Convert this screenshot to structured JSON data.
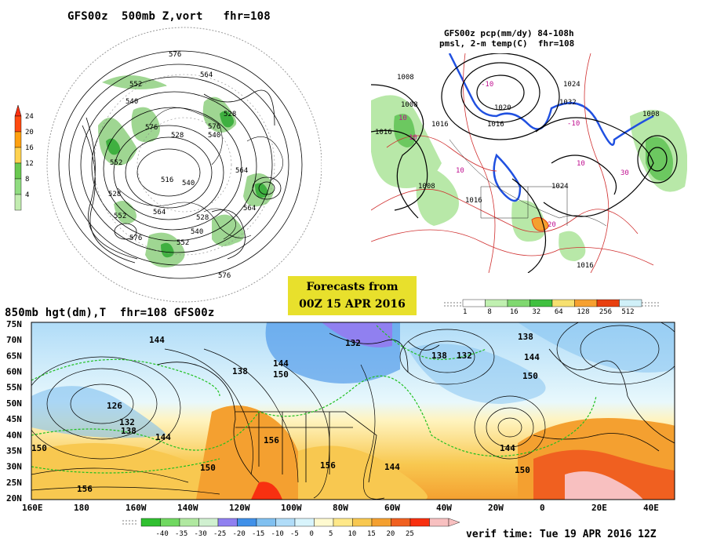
{
  "panel_500mb": {
    "title": "GFS00z  500mb Z,vort   fhr=108",
    "contour_labels": [
      "576",
      "564",
      "552",
      "540",
      "528",
      "576",
      "540",
      "552",
      "564",
      "528",
      "516",
      "552",
      "540",
      "576",
      "528",
      "564",
      "576",
      "552",
      "540",
      "564",
      "528",
      "576"
    ],
    "legend": {
      "ticks": [
        "24",
        "20",
        "16",
        "12",
        "8",
        "4"
      ],
      "colors": [
        "#ff4a10",
        "#ffa010",
        "#ffd250",
        "#6ac850",
        "#90dc80",
        "#c2ecb0"
      ]
    }
  },
  "panel_precip": {
    "title_line1": "GFS00z pcp(mm/dy) 84-108h",
    "title_line2": "pmsl, 2-m temp(C)  fhr=108",
    "pressure_labels": [
      "1008",
      "1008",
      "1016",
      "1016",
      "1016",
      "1032",
      "1024",
      "1024",
      "1020",
      "1016",
      "1008",
      "1008",
      "1016"
    ],
    "temp_labels": [
      "-10",
      "10",
      "10",
      "10",
      "20",
      "10",
      "-10",
      "30"
    ],
    "legend": {
      "ticks": [
        "1",
        "8",
        "16",
        "32",
        "64",
        "128",
        "256",
        "512"
      ],
      "colors": [
        "#ffffff",
        "#c0f0b0",
        "#80d870",
        "#40c040",
        "#f6e070",
        "#f6a030",
        "#e84010",
        "#d0f0f8"
      ]
    }
  },
  "banner": {
    "line1": "Forecasts from",
    "line2": "00Z 15 APR 2016"
  },
  "panel_850mb": {
    "title": "850mb hgt(dm),T  fhr=108 GFS00z",
    "lat_labels": [
      "75N",
      "70N",
      "65N",
      "60N",
      "55N",
      "50N",
      "45N",
      "40N",
      "35N",
      "30N",
      "25N",
      "20N"
    ],
    "lon_labels": [
      "160E",
      "180",
      "160W",
      "140W",
      "120W",
      "100W",
      "80W",
      "60W",
      "40W",
      "20W",
      "0",
      "20E",
      "40E"
    ],
    "height_labels": [
      "144",
      "132",
      "138",
      "138",
      "144",
      "150",
      "138",
      "132",
      "144",
      "150",
      "126",
      "132",
      "138",
      "144",
      "150",
      "156",
      "156",
      "150",
      "144",
      "150",
      "144",
      "156"
    ],
    "temp_legend": {
      "ticks": [
        "-40",
        "-35",
        "-30",
        "-25",
        "-20",
        "-15",
        "-10",
        "-5",
        "0",
        "5",
        "10",
        "15",
        "20",
        "25"
      ],
      "colors": [
        "#30c030",
        "#70d860",
        "#b0e8a0",
        "#d0f0d0",
        "#9080f0",
        "#4090e8",
        "#80c0f0",
        "#b0dcf8",
        "#d8f4fc",
        "#fffad0",
        "#ffe888",
        "#f8c850",
        "#f4a030",
        "#f06020",
        "#f83010",
        "#f8c0c0"
      ]
    }
  },
  "verif_time": "verif time: Tue 19 APR 2016 12Z"
}
